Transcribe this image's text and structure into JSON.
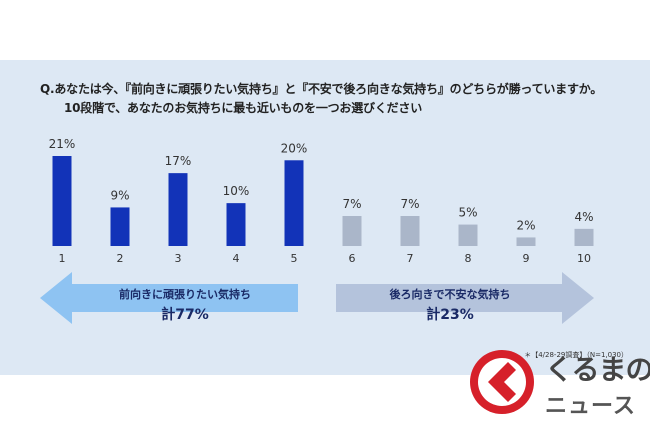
{
  "question": {
    "line1": "Q.あなたは今、『前向きに頑張りたい気持ち』と『不安で後ろ向きな気持ち』のどちらが勝っていますか。",
    "line2": "10段階で、あなたのお気持ちに最も近いものを一つお選びください"
  },
  "chart_data": {
    "type": "bar",
    "categories": [
      "1",
      "2",
      "3",
      "4",
      "5",
      "6",
      "7",
      "8",
      "9",
      "10"
    ],
    "values": [
      21,
      9,
      17,
      10,
      20,
      7,
      7,
      5,
      2,
      4
    ],
    "value_labels": [
      "21%",
      "9%",
      "17%",
      "10%",
      "20%",
      "7%",
      "7%",
      "5%",
      "2%",
      "4%"
    ],
    "ylim": [
      0,
      21
    ],
    "colors": {
      "positive": "#1233b8",
      "negative": "#aab6c9"
    },
    "groups": [
      {
        "label": "前向きに頑張りたい気持ち",
        "total_label": "計77%",
        "range": [
          1,
          5
        ],
        "color": "#8ec3f2"
      },
      {
        "label": "後ろ向きで不安な気持ち",
        "total_label": "計23%",
        "range": [
          6,
          10
        ],
        "color": "#b4c3dc"
      }
    ]
  },
  "footnote": "＊【4/28-29調査】（N=1,030）",
  "logo": {
    "line1": "くるまの",
    "line2": "ニュース",
    "icon": "kuruma-chevron-logo-icon",
    "color": "#d6202a"
  }
}
